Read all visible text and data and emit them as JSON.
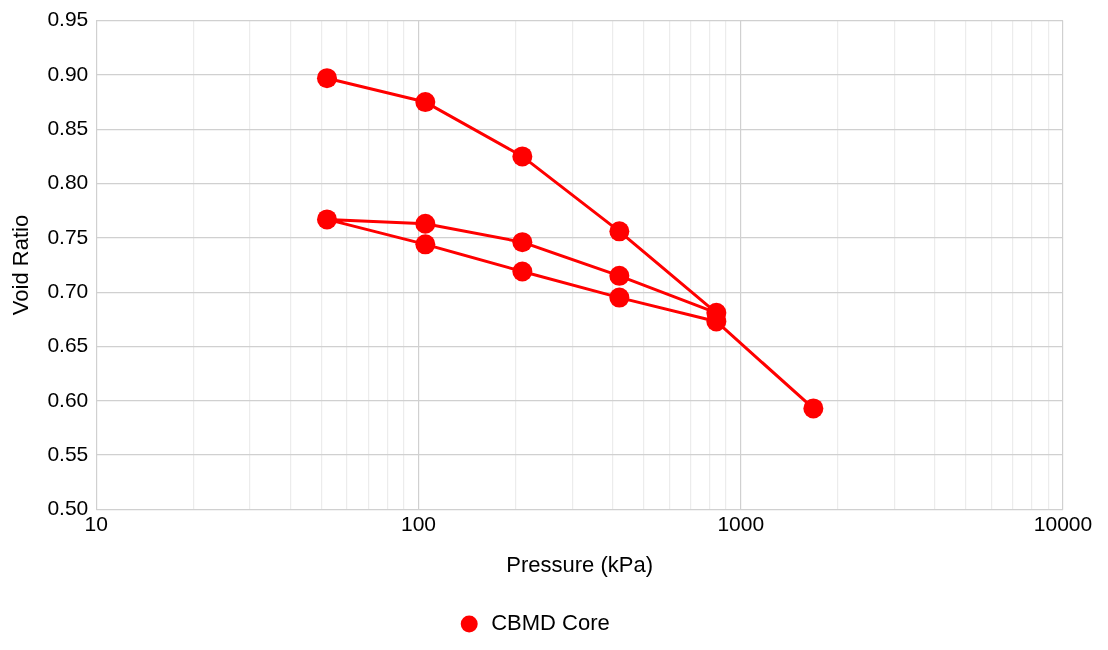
{
  "chart_data": {
    "type": "line",
    "xlabel": "Pressure (kPa)",
    "ylabel": "Void Ratio",
    "log": "x",
    "xlim": [
      10,
      10000
    ],
    "xticks": [
      10,
      100,
      1000,
      10000
    ],
    "ylim": [
      0.5,
      0.95
    ],
    "yticks": [
      {
        "value": 0.5,
        "label": "0.50"
      },
      0.55,
      {
        "value": 0.6,
        "label": "0.60"
      },
      0.65,
      {
        "value": 0.7,
        "label": "0.70"
      },
      0.75,
      {
        "value": 0.8,
        "label": "0.80"
      },
      0.85,
      {
        "value": 0.9,
        "label": "0.90"
      },
      0.95
    ],
    "grid": true,
    "legend": "bottom",
    "marker": "circle",
    "line_style": "solid",
    "series": [
      {
        "name": "CBMD Core",
        "color": "#ff0000",
        "x": [
          52,
          105,
          210,
          420,
          840,
          420,
          210,
          105,
          52,
          105,
          210,
          420,
          840,
          1680
        ],
        "values": [
          0.897,
          0.875,
          0.825,
          0.756,
          0.681,
          0.715,
          0.746,
          0.763,
          0.767,
          0.744,
          0.719,
          0.695,
          0.673,
          0.593
        ]
      }
    ]
  }
}
